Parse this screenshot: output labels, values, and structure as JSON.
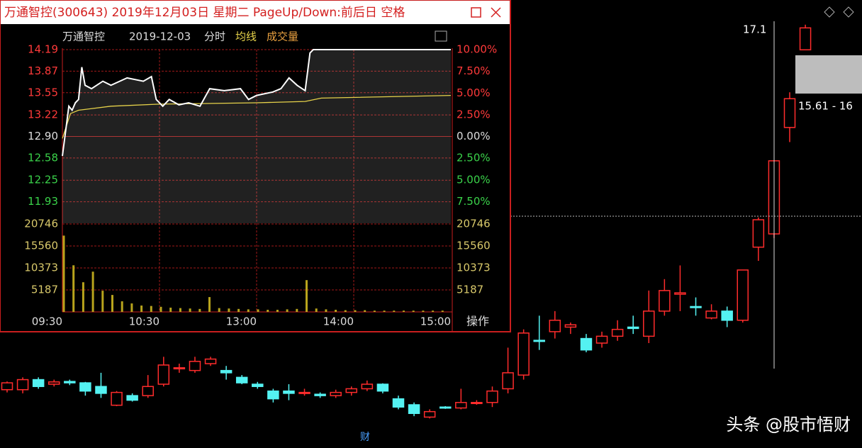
{
  "window": {
    "title": "万通智控(300643) 2019年12月03日 星期二 PageUp/Down:前后日 空格",
    "header": [
      "万通智控",
      "2019-12-03",
      "分时",
      "均线",
      "成交量"
    ],
    "button": "操作"
  },
  "intraday": {
    "xlim": [
      0,
      240
    ],
    "ylim": [
      11.61,
      14.19
    ],
    "pct_lim": [
      -10,
      10
    ],
    "vol_lim": [
      0,
      20746
    ],
    "price_ticks": [
      14.19,
      13.87,
      13.55,
      13.22,
      {
        "value": 12.9,
        "label": "12.90"
      },
      12.58,
      12.25,
      11.93
    ],
    "pct_ticks": [
      {
        "value": 10,
        "label": "10.00%"
      },
      {
        "value": 7.5,
        "label": "7.50%"
      },
      {
        "value": 5,
        "label": "5.00%"
      },
      {
        "value": 2.5,
        "label": "2.50%"
      },
      {
        "value": 0,
        "label": "0.00%"
      },
      {
        "value": -2.5,
        "label": "2.50%"
      },
      {
        "value": -5,
        "label": "5.00%"
      },
      {
        "value": -7.5,
        "label": "7.50%"
      }
    ],
    "volume_ticks": [
      20746,
      15560,
      10373,
      5187
    ],
    "time_ticks": [
      {
        "value": 0,
        "label": "09:30"
      },
      {
        "value": 60,
        "label": "10:30"
      },
      {
        "value": 120,
        "label": "13:00"
      },
      {
        "value": 180,
        "label": "14:00"
      },
      {
        "value": 240,
        "label": "15:00"
      }
    ],
    "price_line": {
      "color": "#ffffff",
      "x": [
        0,
        2,
        4,
        6,
        8,
        10,
        12,
        14,
        18,
        25,
        30,
        40,
        50,
        55,
        58,
        62,
        66,
        72,
        78,
        85,
        91,
        100,
        110,
        115,
        120,
        130,
        135,
        140,
        145,
        150,
        153,
        155,
        240
      ],
      "values": [
        12.61,
        12.98,
        13.35,
        13.29,
        13.4,
        13.45,
        13.93,
        13.66,
        13.61,
        13.72,
        13.66,
        13.77,
        13.72,
        13.79,
        13.45,
        13.35,
        13.45,
        13.37,
        13.4,
        13.35,
        13.61,
        13.58,
        13.61,
        13.45,
        13.51,
        13.56,
        13.61,
        13.77,
        13.66,
        13.58,
        14.14,
        14.19,
        14.19
      ]
    },
    "avg_line": {
      "color": "#e6d24a",
      "x": [
        0,
        5,
        10,
        30,
        60,
        120,
        150,
        160,
        240
      ],
      "values": [
        12.87,
        13.24,
        13.29,
        13.35,
        13.38,
        13.4,
        13.42,
        13.47,
        13.51
      ]
    },
    "volume": {
      "color": "#b8a41c",
      "x": [
        0,
        6,
        12,
        18,
        24,
        30,
        36,
        42,
        48,
        54,
        60,
        66,
        72,
        78,
        84,
        90,
        96,
        102,
        108,
        114,
        120,
        126,
        132,
        138,
        144,
        150,
        156,
        162,
        168,
        174,
        180,
        186,
        192,
        198,
        204,
        210,
        216,
        222,
        228,
        234
      ],
      "values": [
        18000,
        11000,
        7000,
        9500,
        5000,
        4000,
        2500,
        2000,
        1500,
        1400,
        1200,
        1000,
        900,
        800,
        700,
        3500,
        900,
        800,
        700,
        600,
        600,
        500,
        500,
        600,
        700,
        7500,
        800,
        600,
        500,
        400,
        400,
        400,
        300,
        300,
        300,
        300,
        300,
        300,
        300,
        300
      ]
    }
  },
  "daily": {
    "ylim": [
      8.4,
      17.4
    ],
    "up_color": "#ff2c2c",
    "down_color": "#54f2f2",
    "open": [
      9.18,
      9.18,
      9.4,
      9.3,
      9.36,
      9.33,
      9.25,
      8.84,
      9.05,
      9.05,
      9.3,
      9.65,
      9.6,
      9.75,
      9.6,
      9.45,
      9.3,
      9.15,
      9.15,
      9.1,
      9.08,
      9.05,
      9.12,
      9.2,
      9.3,
      8.98,
      8.85,
      8.58,
      8.8,
      8.78,
      8.9,
      8.9,
      9.2,
      9.5,
      10.26,
      10.45,
      10.55,
      10.3,
      10.2,
      10.35,
      10.55,
      10.35,
      10.9,
      11.27,
      11.0,
      10.75,
      10.9,
      10.7,
      12.3,
      12.59,
      14.92,
      16.62
    ],
    "high": [
      9.36,
      9.45,
      9.45,
      9.4,
      9.4,
      9.35,
      9.55,
      9.15,
      9.1,
      9.5,
      9.9,
      9.75,
      9.9,
      9.9,
      9.7,
      9.5,
      9.35,
      9.2,
      9.3,
      9.2,
      9.12,
      9.18,
      9.25,
      9.38,
      9.32,
      9.05,
      8.9,
      8.75,
      8.82,
      9.2,
      8.95,
      9.25,
      10.1,
      10.5,
      10.8,
      10.9,
      10.65,
      10.4,
      10.45,
      10.7,
      10.8,
      11.35,
      11.6,
      11.9,
      11.2,
      11.05,
      11.0,
      11.8,
      12.95,
      14.19,
      15.69,
      17.17
    ],
    "low": [
      9.12,
      9.1,
      9.2,
      9.25,
      9.28,
      9.05,
      9.0,
      8.82,
      8.92,
      9.0,
      9.25,
      9.55,
      9.55,
      9.7,
      9.4,
      9.3,
      9.2,
      8.9,
      8.95,
      9.05,
      9.0,
      9.0,
      9.05,
      9.15,
      9.1,
      8.75,
      8.6,
      8.55,
      8.76,
      8.75,
      8.85,
      8.8,
      9.1,
      9.4,
      10.05,
      10.3,
      10.4,
      10.0,
      10.1,
      10.25,
      10.4,
      10.2,
      10.8,
      10.9,
      10.8,
      10.72,
      10.55,
      10.65,
      12.0,
      12.5,
      14.6,
      16.62
    ],
    "close": [
      9.33,
      9.4,
      9.25,
      9.35,
      9.33,
      9.15,
      9.1,
      9.12,
      8.95,
      9.25,
      9.72,
      9.66,
      9.8,
      9.85,
      9.55,
      9.33,
      9.25,
      8.98,
      9.1,
      9.12,
      9.05,
      9.12,
      9.2,
      9.3,
      9.15,
      8.8,
      8.66,
      8.7,
      8.78,
      8.9,
      8.9,
      9.15,
      9.55,
      10.42,
      10.25,
      10.7,
      10.6,
      10.05,
      10.35,
      10.5,
      10.52,
      10.9,
      11.35,
      11.3,
      10.98,
      10.9,
      10.7,
      11.8,
      12.9,
      14.19,
      15.55,
      17.1
    ],
    "labels": [
      "17.1",
      "15.61 - 16"
    ],
    "tag": "财"
  },
  "watermark": "头条 @股市悟财"
}
